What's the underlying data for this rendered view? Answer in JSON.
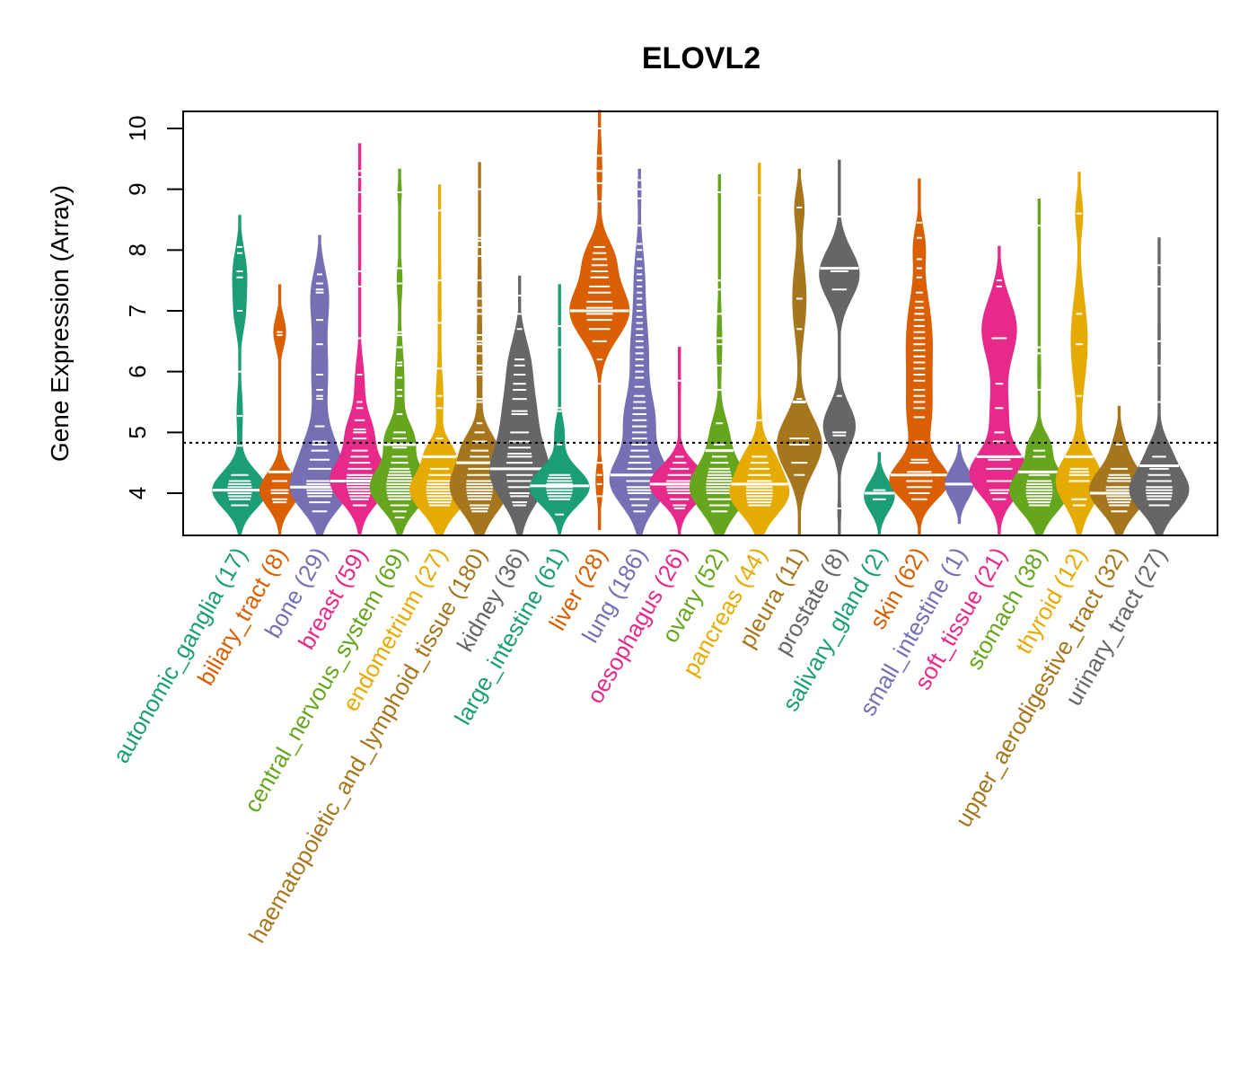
{
  "chart_data": {
    "type": "beanplot",
    "title": "ELOVL2",
    "xlabel": "",
    "ylabel": "Gene Expression (Array)",
    "ylim": [
      3.3,
      10.3
    ],
    "yticks": [
      4,
      5,
      6,
      7,
      8,
      9,
      10
    ],
    "grid": false,
    "reference_line": {
      "value": 4.83,
      "style": "dotted",
      "color": "#000000"
    },
    "palette": [
      "#1B9E77",
      "#D95F02",
      "#7570B3",
      "#E7298A",
      "#66A61E",
      "#E6AB02",
      "#A6761D",
      "#666666"
    ],
    "categories": [
      {
        "name": "autonomic_ganglia",
        "n": 17,
        "label": "autonomic_ganglia (17)",
        "color": "#1B9E77",
        "min": 3.3,
        "max": 8.57,
        "median": 4.05,
        "density": [
          [
            4.05,
            0.3,
            1.0
          ],
          [
            7.6,
            0.4,
            0.25
          ],
          [
            6.9,
            0.3,
            0.15
          ],
          [
            5.3,
            0.4,
            0.1
          ]
        ],
        "points": [
          3.8,
          3.9,
          3.95,
          4.0,
          4.05,
          4.1,
          4.15,
          4.2,
          4.3,
          4.78,
          5.27,
          6.0,
          7.0,
          7.55,
          7.65,
          7.95,
          8.05
        ]
      },
      {
        "name": "biliary_tract",
        "n": 8,
        "label": "biliary_tract (8)",
        "color": "#D95F02",
        "min": 3.3,
        "max": 7.43,
        "median": 4.35,
        "density": [
          [
            4.05,
            0.28,
            1.0
          ],
          [
            6.65,
            0.25,
            0.3
          ]
        ],
        "points": [
          3.85,
          3.9,
          4.0,
          4.05,
          4.2,
          4.35,
          6.6,
          6.65
        ]
      },
      {
        "name": "bone",
        "n": 29,
        "label": "bone (29)",
        "color": "#7570B3",
        "min": 3.3,
        "max": 8.24,
        "median": 4.1,
        "density": [
          [
            4.05,
            0.35,
            1.0
          ],
          [
            4.7,
            0.35,
            0.45
          ],
          [
            6.0,
            0.8,
            0.3
          ],
          [
            7.3,
            0.4,
            0.25
          ]
        ],
        "points": [
          3.7,
          3.85,
          3.95,
          4.0,
          4.05,
          4.1,
          4.15,
          4.2,
          4.4,
          4.55,
          4.7,
          4.8,
          4.85,
          5.1,
          5.55,
          5.6,
          5.7,
          5.95,
          6.45,
          6.85,
          7.3,
          7.35,
          7.45,
          7.6
        ]
      },
      {
        "name": "breast",
        "n": 59,
        "label": "breast (59)",
        "color": "#E7298A",
        "min": 3.3,
        "max": 9.75,
        "median": 4.2,
        "density": [
          [
            4.2,
            0.35,
            1.0
          ],
          [
            5.0,
            0.3,
            0.4
          ],
          [
            5.8,
            0.4,
            0.15
          ],
          [
            8.5,
            1.0,
            0.04
          ]
        ],
        "points": [
          3.8,
          3.9,
          3.95,
          4.0,
          4.05,
          4.1,
          4.15,
          4.2,
          4.25,
          4.3,
          4.4,
          4.5,
          4.6,
          4.7,
          4.9,
          5.0,
          5.05,
          5.2,
          5.4,
          5.5,
          5.95,
          6.55,
          7.4,
          7.65,
          8.6,
          8.95,
          9.2,
          9.3
        ]
      },
      {
        "name": "central_nervous_system",
        "n": 69,
        "label": "central_nervous_system (69)",
        "color": "#66A61E",
        "min": 3.3,
        "max": 9.33,
        "median": 4.8,
        "density": [
          [
            4.1,
            0.35,
            1.0
          ],
          [
            4.9,
            0.25,
            0.4
          ],
          [
            5.8,
            0.6,
            0.15
          ],
          [
            7.5,
            0.3,
            0.08
          ],
          [
            8.95,
            0.2,
            0.06
          ]
        ],
        "points": [
          3.6,
          3.7,
          3.8,
          3.9,
          3.95,
          4.0,
          4.05,
          4.1,
          4.15,
          4.2,
          4.25,
          4.3,
          4.35,
          4.4,
          4.5,
          4.6,
          4.75,
          4.8,
          4.9,
          5.0,
          5.3,
          5.6,
          5.7,
          5.9,
          6.1,
          6.15,
          6.4,
          6.6,
          6.65,
          7.45,
          7.7,
          8.95
        ]
      },
      {
        "name": "endometrium",
        "n": 27,
        "label": "endometrium (27)",
        "color": "#E6AB02",
        "min": 3.3,
        "max": 9.07,
        "median": 4.6,
        "density": [
          [
            4.05,
            0.35,
            1.0
          ],
          [
            4.7,
            0.2,
            0.3
          ],
          [
            5.5,
            0.4,
            0.1
          ],
          [
            7.0,
            1.0,
            0.05
          ]
        ],
        "points": [
          3.8,
          3.85,
          3.9,
          3.95,
          4.0,
          4.05,
          4.1,
          4.15,
          4.2,
          4.3,
          4.4,
          4.6,
          4.9,
          5.4,
          5.6,
          6.05,
          6.8,
          7.5,
          8.65
        ]
      },
      {
        "name": "haematopoietic_and_lymphoid_tissue",
        "n": 180,
        "label": "haematopoietic_and_lymphoid_tissue (180)",
        "color": "#A6761D",
        "min": 3.3,
        "max": 9.44,
        "median": 4.5,
        "density": [
          [
            4.1,
            0.4,
            1.0
          ],
          [
            4.8,
            0.25,
            0.35
          ],
          [
            5.8,
            0.8,
            0.08
          ],
          [
            7.5,
            0.8,
            0.05
          ]
        ],
        "points": [
          3.7,
          3.75,
          3.8,
          3.9,
          3.95,
          4.0,
          4.05,
          4.1,
          4.15,
          4.2,
          4.3,
          4.4,
          4.5,
          4.6,
          4.7,
          4.85,
          5.0,
          5.15,
          5.5,
          5.55,
          5.95,
          6.0,
          6.1,
          6.3,
          6.45,
          6.5,
          6.6,
          6.95,
          7.05,
          7.2,
          7.5,
          7.9,
          8.05,
          8.15,
          8.2,
          9.0
        ]
      },
      {
        "name": "kidney",
        "n": 36,
        "label": "kidney (36)",
        "color": "#666666",
        "min": 3.3,
        "max": 7.57,
        "median": 4.4,
        "density": [
          [
            4.3,
            0.45,
            1.0
          ],
          [
            5.3,
            0.5,
            0.55
          ],
          [
            6.2,
            0.4,
            0.3
          ]
        ],
        "points": [
          3.8,
          3.85,
          3.95,
          4.0,
          4.1,
          4.2,
          4.3,
          4.4,
          4.5,
          4.6,
          4.65,
          4.75,
          4.85,
          5.0,
          5.3,
          5.35,
          5.55,
          5.7,
          5.8,
          5.95,
          6.1,
          6.2,
          6.7,
          6.95,
          7.25
        ]
      },
      {
        "name": "large_intestine",
        "n": 61,
        "label": "large_intestine (61)",
        "color": "#1B9E77",
        "min": 3.3,
        "max": 7.43,
        "median": 4.12,
        "density": [
          [
            4.1,
            0.3,
            1.0
          ],
          [
            5.0,
            0.25,
            0.15
          ],
          [
            6.5,
            0.5,
            0.03
          ]
        ],
        "points": [
          3.65,
          3.9,
          3.95,
          4.0,
          4.05,
          4.1,
          4.15,
          4.2,
          4.25,
          4.3,
          4.8,
          5.35,
          5.4,
          6.4,
          6.75
        ]
      },
      {
        "name": "liver",
        "n": 28,
        "label": "liver (28)",
        "color": "#D95F02",
        "min": 3.4,
        "max": 10.3,
        "median": 7.0,
        "density": [
          [
            7.0,
            0.45,
            1.0
          ],
          [
            7.9,
            0.3,
            0.4
          ],
          [
            4.2,
            0.3,
            0.12
          ],
          [
            9.3,
            0.5,
            0.08
          ]
        ],
        "points": [
          3.95,
          4.15,
          4.3,
          4.5,
          5.8,
          6.2,
          6.5,
          6.7,
          6.85,
          6.95,
          7.05,
          7.15,
          7.3,
          7.4,
          7.55,
          7.65,
          7.75,
          7.85,
          7.95,
          8.05,
          8.8,
          9.1,
          9.3,
          9.55,
          10.0
        ]
      },
      {
        "name": "lung",
        "n": 186,
        "label": "lung (186)",
        "color": "#7570B3",
        "min": 3.3,
        "max": 9.33,
        "median": 4.3,
        "density": [
          [
            4.2,
            0.4,
            1.0
          ],
          [
            5.2,
            0.4,
            0.45
          ],
          [
            6.3,
            0.6,
            0.3
          ],
          [
            7.6,
            0.5,
            0.15
          ],
          [
            9.0,
            0.3,
            0.05
          ]
        ],
        "points": [
          3.7,
          3.8,
          3.9,
          4.0,
          4.05,
          4.1,
          4.2,
          4.3,
          4.4,
          4.5,
          4.6,
          4.7,
          4.8,
          4.9,
          5.0,
          5.1,
          5.2,
          5.3,
          5.4,
          5.5,
          5.6,
          5.75,
          5.9,
          6.0,
          6.1,
          6.2,
          6.3,
          6.4,
          6.5,
          6.6,
          6.7,
          6.8,
          6.9,
          7.0,
          7.1,
          7.2,
          7.3,
          7.4,
          7.5,
          7.6,
          7.7,
          7.85,
          8.0,
          8.1,
          8.4,
          8.85,
          9.0,
          9.15
        ]
      },
      {
        "name": "oesophagus",
        "n": 26,
        "label": "oesophagus (26)",
        "color": "#E7298A",
        "min": 3.3,
        "max": 6.4,
        "median": 4.15,
        "density": [
          [
            4.15,
            0.3,
            1.0
          ],
          [
            5.8,
            0.3,
            0.04
          ]
        ],
        "points": [
          3.75,
          3.8,
          3.9,
          4.0,
          4.05,
          4.1,
          4.15,
          4.2,
          4.3,
          4.4,
          4.5,
          4.6,
          5.85
        ]
      },
      {
        "name": "ovary",
        "n": 52,
        "label": "ovary (52)",
        "color": "#66A61E",
        "min": 3.3,
        "max": 9.24,
        "median": 4.7,
        "density": [
          [
            4.1,
            0.4,
            1.0
          ],
          [
            5.0,
            0.3,
            0.25
          ],
          [
            6.5,
            0.6,
            0.08
          ],
          [
            8.95,
            0.15,
            0.04
          ]
        ],
        "points": [
          3.7,
          3.8,
          3.9,
          4.0,
          4.05,
          4.1,
          4.15,
          4.2,
          4.25,
          4.3,
          4.35,
          4.4,
          4.5,
          4.6,
          4.7,
          4.8,
          5.15,
          5.7,
          6.1,
          6.45,
          6.55,
          6.95,
          7.35,
          7.5,
          8.95
        ]
      },
      {
        "name": "pancreas",
        "n": 44,
        "label": "pancreas (44)",
        "color": "#E6AB02",
        "min": 3.3,
        "max": 9.43,
        "median": 4.15,
        "density": [
          [
            4.0,
            0.35,
            1.0
          ],
          [
            4.6,
            0.25,
            0.35
          ],
          [
            5.3,
            0.3,
            0.06
          ],
          [
            8.9,
            0.2,
            0.02
          ]
        ],
        "points": [
          3.8,
          3.85,
          3.9,
          3.95,
          4.0,
          4.05,
          4.1,
          4.15,
          4.2,
          4.3,
          4.4,
          4.5,
          4.6,
          5.2,
          8.9
        ]
      },
      {
        "name": "pleura",
        "n": 11,
        "label": "pleura (11)",
        "color": "#A6761D",
        "min": 3.3,
        "max": 9.33,
        "median": 5.5,
        "density": [
          [
            4.8,
            0.45,
            1.0
          ],
          [
            7.2,
            0.6,
            0.3
          ],
          [
            8.7,
            0.3,
            0.2
          ]
        ],
        "points": [
          4.3,
          4.5,
          4.8,
          4.9,
          5.5,
          5.55,
          6.7,
          7.2,
          8.7
        ]
      },
      {
        "name": "prostate",
        "n": 8,
        "label": "prostate (8)",
        "color": "#666666",
        "min": 3.3,
        "max": 9.48,
        "median": 7.7,
        "density": [
          [
            7.6,
            0.4,
            1.0
          ],
          [
            5.1,
            0.35,
            0.8
          ],
          [
            3.7,
            0.2,
            0.08
          ]
        ],
        "points": [
          3.75,
          4.95,
          5.0,
          5.6,
          7.35,
          7.65,
          7.7,
          8.55
        ]
      },
      {
        "name": "salivary_gland",
        "n": 2,
        "label": "salivary_gland (2)",
        "color": "#1B9E77",
        "min": 3.3,
        "max": 4.67,
        "median": 4.0,
        "density": [
          [
            3.95,
            0.25,
            1.0
          ]
        ],
        "points": [
          3.9,
          4.05
        ]
      },
      {
        "name": "skin",
        "n": 62,
        "label": "skin (62)",
        "color": "#D95F02",
        "min": 3.3,
        "max": 9.17,
        "median": 4.3,
        "density": [
          [
            4.2,
            0.3,
            1.0
          ],
          [
            6.5,
            0.8,
            0.45
          ],
          [
            5.2,
            0.5,
            0.3
          ],
          [
            8.1,
            0.3,
            0.15
          ]
        ],
        "points": [
          3.9,
          4.0,
          4.1,
          4.2,
          4.3,
          4.35,
          4.5,
          4.55,
          4.85,
          5.25,
          5.4,
          5.5,
          5.6,
          5.7,
          5.85,
          5.95,
          6.05,
          6.15,
          6.25,
          6.35,
          6.45,
          6.55,
          6.65,
          6.75,
          6.85,
          6.95,
          7.05,
          7.15,
          7.3,
          7.55,
          7.7,
          7.85,
          8.2,
          8.45
        ]
      },
      {
        "name": "small_intestine",
        "n": 1,
        "label": "small_intestine (1)",
        "color": "#7570B3",
        "min": 3.5,
        "max": 4.8,
        "median": 4.15,
        "density": [
          [
            4.15,
            0.25,
            1.0
          ]
        ],
        "points": [
          4.15
        ]
      },
      {
        "name": "soft_tissue",
        "n": 21,
        "label": "soft_tissue (21)",
        "color": "#E7298A",
        "min": 3.3,
        "max": 8.06,
        "median": 4.6,
        "density": [
          [
            4.3,
            0.35,
            1.0
          ],
          [
            6.7,
            0.5,
            0.6
          ],
          [
            5.3,
            0.5,
            0.3
          ]
        ],
        "points": [
          3.9,
          4.0,
          4.05,
          4.2,
          4.4,
          4.55,
          4.85,
          5.0,
          5.4,
          5.8,
          6.55,
          7.4,
          7.5
        ]
      },
      {
        "name": "stomach",
        "n": 38,
        "label": "stomach (38)",
        "color": "#66A61E",
        "min": 3.3,
        "max": 8.84,
        "median": 4.35,
        "density": [
          [
            4.05,
            0.35,
            1.0
          ],
          [
            4.8,
            0.2,
            0.3
          ],
          [
            6.0,
            0.5,
            0.05
          ],
          [
            8.4,
            0.2,
            0.03
          ]
        ],
        "points": [
          3.8,
          3.85,
          3.9,
          3.95,
          4.0,
          4.05,
          4.1,
          4.15,
          4.2,
          4.3,
          4.35,
          4.6,
          4.7,
          5.7,
          6.3,
          6.4,
          8.4
        ]
      },
      {
        "name": "thyroid",
        "n": 12,
        "label": "thyroid (12)",
        "color": "#E6AB02",
        "min": 3.3,
        "max": 9.28,
        "median": 4.6,
        "density": [
          [
            4.2,
            0.4,
            1.0
          ],
          [
            6.5,
            0.7,
            0.35
          ],
          [
            8.6,
            0.3,
            0.15
          ]
        ],
        "points": [
          3.8,
          3.9,
          4.2,
          4.3,
          4.35,
          4.4,
          5.6,
          6.45,
          6.95,
          8.6
        ]
      },
      {
        "name": "upper_aerodigestive_tract",
        "n": 32,
        "label": "upper_aerodigestive_tract (32)",
        "color": "#A6761D",
        "min": 3.3,
        "max": 5.43,
        "median": 4.0,
        "density": [
          [
            4.05,
            0.35,
            1.0
          ],
          [
            4.8,
            0.25,
            0.15
          ]
        ],
        "points": [
          3.7,
          3.8,
          3.85,
          3.9,
          3.95,
          4.0,
          4.05,
          4.1,
          4.2,
          4.25,
          4.3,
          4.4,
          4.8
        ]
      },
      {
        "name": "urinary_tract",
        "n": 27,
        "label": "urinary_tract (27)",
        "color": "#666666",
        "min": 3.3,
        "max": 8.2,
        "median": 4.45,
        "density": [
          [
            4.05,
            0.35,
            1.0
          ],
          [
            4.7,
            0.25,
            0.25
          ],
          [
            6.5,
            1.0,
            0.04
          ]
        ],
        "points": [
          3.8,
          3.9,
          3.95,
          4.0,
          4.05,
          4.1,
          4.2,
          4.3,
          4.4,
          4.6,
          5.5,
          6.1,
          6.5,
          7.4,
          7.75
        ]
      }
    ]
  }
}
